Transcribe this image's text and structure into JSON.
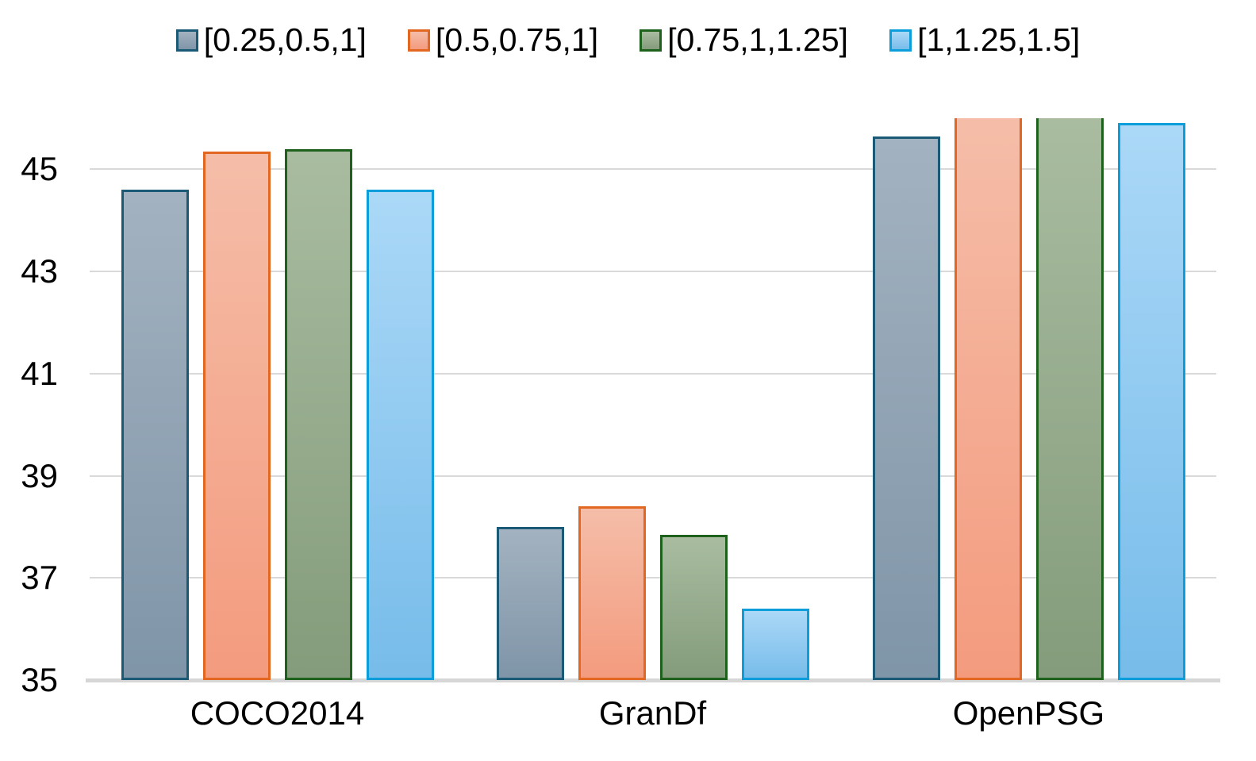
{
  "figure": {
    "background": "#ffffff"
  },
  "chart_data": {
    "type": "bar",
    "title": "",
    "xlabel": "",
    "ylabel": "",
    "categories": [
      "COCO2014",
      "GranDf",
      "OpenPSG"
    ],
    "series": [
      {
        "name": "[0.25,0.5,1]",
        "values": [
          44.6,
          38.0,
          45.65
        ],
        "fill_top": "#a3b2c0",
        "fill_bottom": "#7f95a8",
        "border": "#1b5a76"
      },
      {
        "name": "[0.5,0.75,1]",
        "values": [
          45.35,
          38.4,
          46.0
        ],
        "fill_top": "#f5bda8",
        "fill_bottom": "#f49b7e",
        "border": "#e26720"
      },
      {
        "name": "[0.75,1,1.25]",
        "values": [
          45.4,
          37.85,
          46.0
        ],
        "fill_top": "#a9bca0",
        "fill_bottom": "#849c7b",
        "border": "#1e611c"
      },
      {
        "name": "[1,1.25,1.5]",
        "values": [
          44.6,
          36.4,
          45.9
        ],
        "fill_top": "#abd8f7",
        "fill_bottom": "#77bcea",
        "border": "#0c9ddb"
      }
    ],
    "ylim": [
      35,
      46
    ],
    "yticks": [
      45,
      43,
      41,
      39,
      37,
      35
    ],
    "grid": true,
    "gridline_color": "#d9d9d9",
    "axis_line_color": "#d6d6d6",
    "text_color": "#000000",
    "legend_position": "top"
  }
}
